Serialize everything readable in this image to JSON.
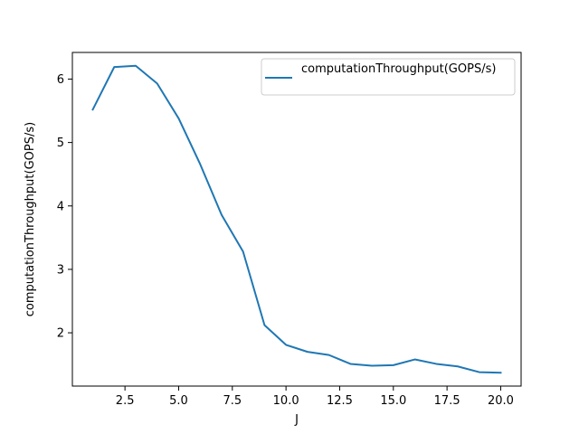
{
  "chart_data": {
    "type": "line",
    "title": "",
    "xlabel": "J",
    "ylabel": "computationThroughput(GOPS/s)",
    "xlim": [
      0.05,
      20.95
    ],
    "ylim": [
      1.16,
      6.42
    ],
    "xticks": [
      2.5,
      5.0,
      7.5,
      10.0,
      12.5,
      15.0,
      17.5,
      20.0
    ],
    "xtick_labels": [
      "2.5",
      "5.0",
      "7.5",
      "10.0",
      "12.5",
      "15.0",
      "17.5",
      "20.0"
    ],
    "yticks": [
      2,
      3,
      4,
      5,
      6
    ],
    "ytick_labels": [
      "2",
      "3",
      "4",
      "5",
      "6"
    ],
    "grid": false,
    "legend_position": "top-right",
    "series": [
      {
        "name": "computationThroughput(GOPS/s)",
        "color": "#1f77b4",
        "x": [
          1,
          2,
          3,
          4,
          5,
          6,
          7,
          8,
          9,
          10,
          11,
          12,
          13,
          14,
          15,
          16,
          17,
          18,
          19,
          20
        ],
        "y": [
          5.52,
          6.19,
          6.21,
          5.93,
          5.38,
          4.66,
          3.86,
          3.28,
          2.12,
          1.81,
          1.7,
          1.65,
          1.51,
          1.48,
          1.49,
          1.58,
          1.51,
          1.47,
          1.38,
          1.37
        ]
      }
    ]
  }
}
